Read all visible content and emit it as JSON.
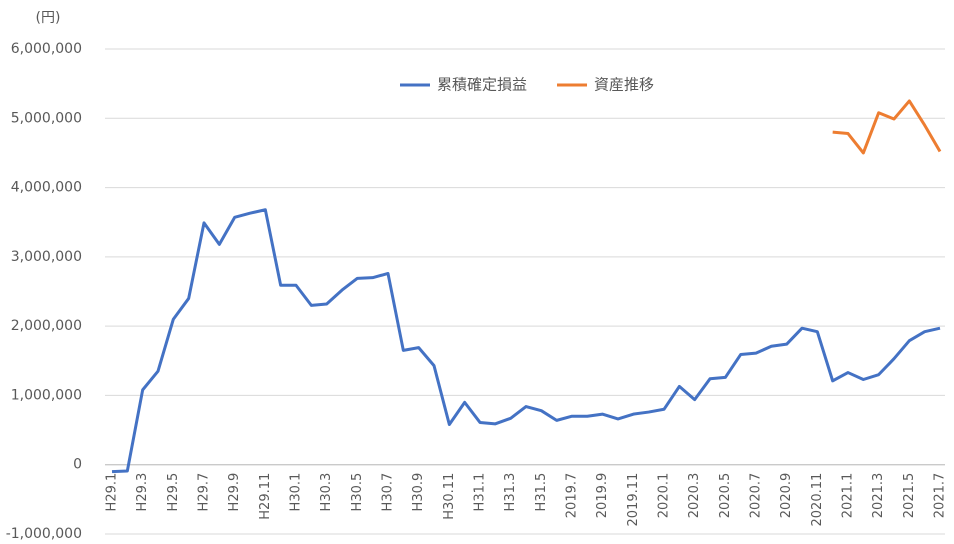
{
  "chart_data": {
    "type": "line",
    "y_label": "(円)",
    "categories": [
      "H29.1",
      null,
      "H29.3",
      null,
      "H29.5",
      null,
      "H29.7",
      null,
      "H29.9",
      null,
      "H29.11",
      null,
      "H30.1",
      null,
      "H30.3",
      null,
      "H30.5",
      null,
      "H30.7",
      null,
      "H30.9",
      null,
      "H30.11",
      null,
      "H31.1",
      null,
      "H31.3",
      null,
      "H31.5",
      null,
      "2019.7",
      null,
      "2019.9",
      null,
      "2019.11",
      null,
      "2020.1",
      null,
      "2020.3",
      null,
      "2020.5",
      null,
      "2020.7",
      null,
      "2020.9",
      null,
      "2020.11",
      null,
      "2021.1",
      null,
      "2021.3",
      null,
      "2021.5",
      null,
      "2021.7"
    ],
    "series": [
      {
        "name": "累積確定損益",
        "color": "#4472c4",
        "values": [
          -100000,
          -90000,
          1080000,
          1350000,
          2100000,
          2400000,
          3490000,
          3180000,
          3570000,
          3630000,
          3680000,
          2590000,
          2590000,
          2300000,
          2320000,
          2520000,
          2690000,
          2700000,
          2760000,
          1650000,
          1690000,
          1430000,
          580000,
          900000,
          610000,
          590000,
          670000,
          840000,
          780000,
          640000,
          700000,
          700000,
          730000,
          660000,
          730000,
          760000,
          800000,
          1130000,
          940000,
          1240000,
          1260000,
          1590000,
          1610000,
          1710000,
          1740000,
          1970000,
          1920000,
          1210000,
          1330000,
          1230000,
          1300000,
          1530000,
          1790000,
          1920000,
          1970000
        ]
      },
      {
        "name": "資産推移",
        "color": "#ed7d31",
        "values": [
          null,
          null,
          null,
          null,
          null,
          null,
          null,
          null,
          null,
          null,
          null,
          null,
          null,
          null,
          null,
          null,
          null,
          null,
          null,
          null,
          null,
          null,
          null,
          null,
          null,
          null,
          null,
          null,
          null,
          null,
          null,
          null,
          null,
          null,
          null,
          null,
          null,
          null,
          null,
          null,
          null,
          null,
          null,
          null,
          null,
          null,
          null,
          4800000,
          4780000,
          4500000,
          5080000,
          4990000,
          5250000,
          4900000,
          4520000
        ]
      }
    ],
    "ylim": [
      -1000000,
      6000000
    ],
    "yticks": [
      {
        "value": -1000000,
        "label": "-1,000,000"
      },
      0,
      {
        "value": 1000000,
        "label": "1,000,000"
      },
      {
        "value": 2000000,
        "label": "2,000,000"
      },
      {
        "value": 3000000,
        "label": "3,000,000"
      },
      {
        "value": 4000000,
        "label": "4,000,000"
      },
      {
        "value": 5000000,
        "label": "5,000,000"
      },
      {
        "value": 6000000,
        "label": "6,000,000"
      }
    ],
    "grid": true,
    "legend": "top"
  }
}
